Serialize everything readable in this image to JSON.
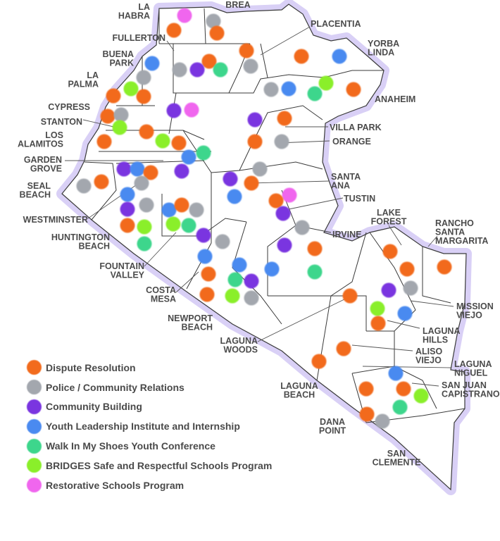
{
  "legend": [
    {
      "key": "dispute",
      "label": "Dispute Resolution",
      "color": "#f26b1d"
    },
    {
      "key": "police",
      "label": "Police / Community Relations",
      "color": "#a3a7ae"
    },
    {
      "key": "community",
      "label": "Community Building",
      "color": "#7a35e0"
    },
    {
      "key": "youth",
      "label": "Youth Leadership Institute and Internship",
      "color": "#4a8af0"
    },
    {
      "key": "walk",
      "label": "Walk In My Shoes Youth Conference",
      "color": "#3dd68c"
    },
    {
      "key": "bridges",
      "label": "BRIDGES Safe and Respectful Schools Program",
      "color": "#8aef2a"
    },
    {
      "key": "restorative",
      "label": "Restorative Schools Program",
      "color": "#f066ee"
    }
  ],
  "cities": [
    {
      "name": "LA HABRA",
      "lines": [
        "LA",
        "HABRA"
      ]
    },
    {
      "name": "BREA",
      "lines": [
        "BREA"
      ]
    },
    {
      "name": "FULLERTON",
      "lines": [
        "FULLERTON"
      ]
    },
    {
      "name": "BUENA PARK",
      "lines": [
        "BUENA",
        "PARK"
      ]
    },
    {
      "name": "LA PALMA",
      "lines": [
        "LA",
        "PALMA"
      ]
    },
    {
      "name": "CYPRESS",
      "lines": [
        "CYPRESS"
      ]
    },
    {
      "name": "STANTON",
      "lines": [
        "STANTON"
      ]
    },
    {
      "name": "LOS ALAMITOS",
      "lines": [
        "LOS",
        "ALAMITOS"
      ]
    },
    {
      "name": "GARDEN GROVE",
      "lines": [
        "GARDEN",
        "GROVE"
      ]
    },
    {
      "name": "SEAL BEACH",
      "lines": [
        "SEAL",
        "BEACH"
      ]
    },
    {
      "name": "WESTMINSTER",
      "lines": [
        "WESTMINSTER"
      ]
    },
    {
      "name": "HUNTINGTON BEACH",
      "lines": [
        "HUNTINGTON",
        "BEACH"
      ]
    },
    {
      "name": "FOUNTAIN VALLEY",
      "lines": [
        "FOUNTAIN",
        "VALLEY"
      ]
    },
    {
      "name": "COSTA MESA",
      "lines": [
        "COSTA",
        "MESA"
      ]
    },
    {
      "name": "NEWPORT BEACH",
      "lines": [
        "NEWPORT",
        "BEACH"
      ]
    },
    {
      "name": "LAGUNA WOODS",
      "lines": [
        "LAGUNA",
        "WOODS"
      ]
    },
    {
      "name": "PLACENTIA",
      "lines": [
        "PLACENTIA"
      ]
    },
    {
      "name": "YORBA LINDA",
      "lines": [
        "YORBA",
        "LINDA"
      ]
    },
    {
      "name": "ANAHEIM",
      "lines": [
        "ANAHEIM"
      ]
    },
    {
      "name": "VILLA PARK",
      "lines": [
        "VILLA PARK"
      ]
    },
    {
      "name": "ORANGE",
      "lines": [
        "ORANGE"
      ]
    },
    {
      "name": "SANTA ANA",
      "lines": [
        "SANTA",
        "ANA"
      ]
    },
    {
      "name": "TUSTIN",
      "lines": [
        "TUSTIN"
      ]
    },
    {
      "name": "IRVINE",
      "lines": [
        "IRVINE"
      ]
    },
    {
      "name": "LAKE FOREST",
      "lines": [
        "LAKE",
        "FOREST"
      ]
    },
    {
      "name": "RANCHO SANTA MARGARITA",
      "lines": [
        "RANCHO",
        "SANTA",
        "MARGARITA"
      ]
    },
    {
      "name": "MISSION VIEJO",
      "lines": [
        "MISSION",
        "VIEJO"
      ]
    },
    {
      "name": "LAGUNA HILLS",
      "lines": [
        "LAGUNA",
        "HILLS"
      ]
    },
    {
      "name": "ALISO VIEJO",
      "lines": [
        "ALISO",
        "VIEJO"
      ]
    },
    {
      "name": "LAGUNA NIGUEL",
      "lines": [
        "LAGUNA",
        "NIGUEL"
      ]
    },
    {
      "name": "SAN JUAN CAPISTRANO",
      "lines": [
        "SAN JUAN",
        "CAPISTRANO"
      ]
    },
    {
      "name": "LAGUNA BEACH",
      "lines": [
        "LAGUNA",
        "BEACH"
      ]
    },
    {
      "name": "DANA POINT",
      "lines": [
        "DANA",
        "POINT"
      ]
    },
    {
      "name": "SAN CLEMENTE",
      "lines": [
        "SAN",
        "CLEMENTE"
      ]
    }
  ],
  "markers": [
    "restorative",
    "dispute",
    "police",
    "dispute",
    "dispute",
    "police",
    "community",
    "walk",
    "dispute",
    "police",
    "dispute",
    "youth",
    "youth",
    "police",
    "bridges",
    "dispute",
    "dispute",
    "police",
    "youth",
    "walk",
    "bridges",
    "dispute",
    "community",
    "restorative",
    "dispute",
    "police",
    "bridges",
    "dispute",
    "dispute",
    "bridges",
    "dispute",
    "walk",
    "youth",
    "community",
    "dispute",
    "community",
    "dispute",
    "police",
    "community",
    "youth",
    "dispute",
    "police",
    "police",
    "dispute",
    "youth",
    "community",
    "police",
    "dispute",
    "bridges",
    "walk",
    "youth",
    "dispute",
    "police",
    "bridges",
    "walk",
    "police",
    "community",
    "dispute",
    "youth",
    "community",
    "restorative",
    "dispute",
    "community",
    "police",
    "community",
    "dispute",
    "youth",
    "walk",
    "police",
    "youth",
    "dispute",
    "youth",
    "walk",
    "community",
    "dispute",
    "bridges",
    "police",
    "dispute",
    "dispute",
    "community",
    "police",
    "dispute",
    "youth",
    "bridges",
    "dispute",
    "dispute",
    "dispute",
    "youth",
    "dispute",
    "dispute",
    "bridges",
    "walk",
    "dispute",
    "police",
    "dispute"
  ]
}
